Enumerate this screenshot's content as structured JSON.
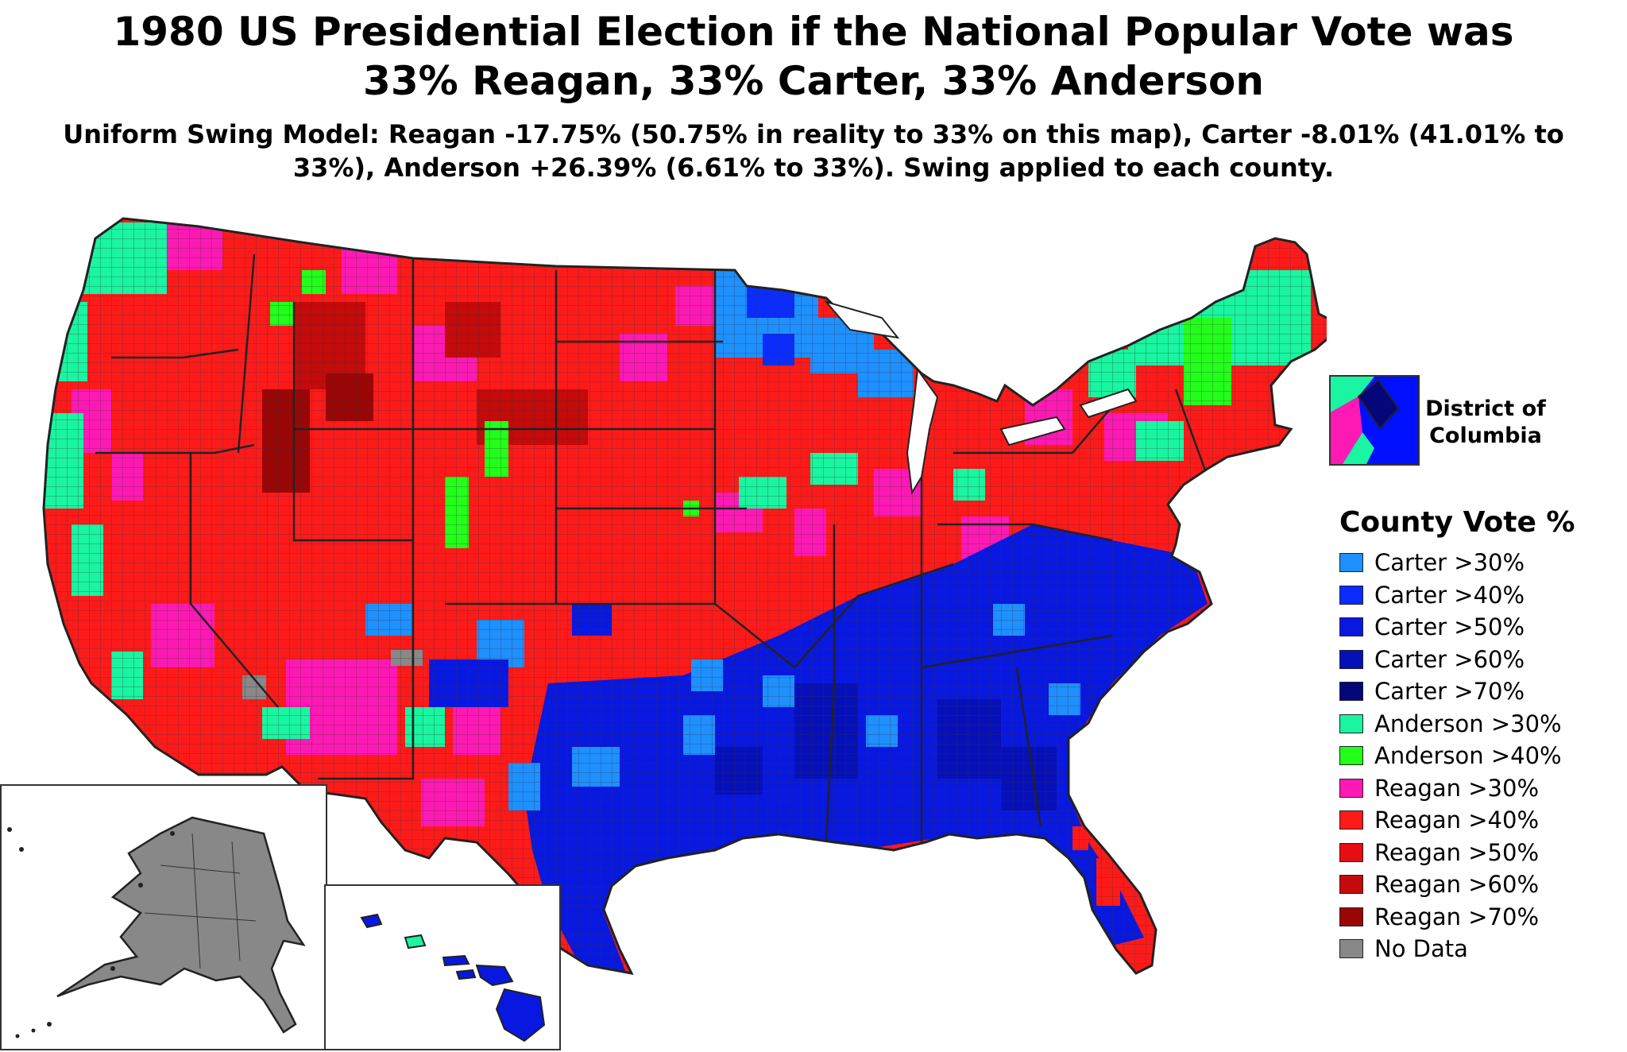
{
  "title_line1": "1980 US Presidential Election if the National Popular Vote was",
  "title_line2": "33% Reagan, 33% Carter, 33% Anderson",
  "subtitle_line1": "Uniform Swing Model: Reagan -17.75% (50.75% in reality to 33% on this map), Carter -8.01% (41.01% to",
  "subtitle_line2": "33%), Anderson +26.39% (6.61% to 33%). Swing applied to each county.",
  "dc_inset": {
    "label_line1": "District of",
    "label_line2": "Columbia"
  },
  "legend": {
    "title": "County Vote %",
    "items": [
      {
        "label": "Carter >30%",
        "color": "#1e90ff"
      },
      {
        "label": "Carter >40%",
        "color": "#0a2cff"
      },
      {
        "label": "Carter >50%",
        "color": "#0818e0"
      },
      {
        "label": "Carter >60%",
        "color": "#0610b8"
      },
      {
        "label": "Carter >70%",
        "color": "#04067a"
      },
      {
        "label": "Anderson >30%",
        "color": "#19f5a0"
      },
      {
        "label": "Anderson >40%",
        "color": "#22ff1a"
      },
      {
        "label": "Reagan >30%",
        "color": "#ff19b4"
      },
      {
        "label": "Reagan >40%",
        "color": "#ff1a1a"
      },
      {
        "label": "Reagan >50%",
        "color": "#e60d14"
      },
      {
        "label": "Reagan >60%",
        "color": "#c40a0a"
      },
      {
        "label": "Reagan >70%",
        "color": "#9a0606"
      },
      {
        "label": "No Data",
        "color": "#888888"
      }
    ]
  }
}
